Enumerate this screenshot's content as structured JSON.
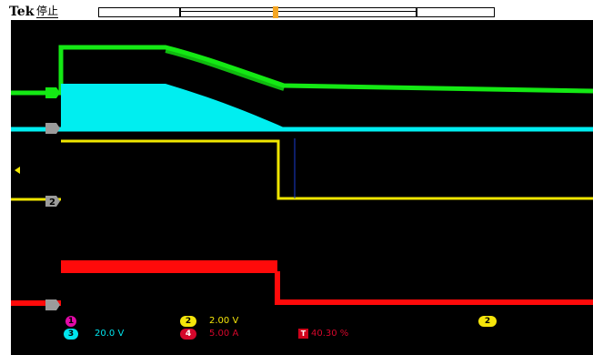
{
  "header": {
    "brand": "Tek",
    "status": "停止"
  },
  "channels": [
    {
      "id": "1",
      "color": "#e30aa8"
    },
    {
      "id": "2",
      "color": "#f5e50a",
      "scale": "2.00 V"
    },
    {
      "id": "3",
      "color": "#00e5ee",
      "scale": "20.0 V"
    },
    {
      "id": "4",
      "color": "#ff1a1a",
      "scale": "5.00 A"
    }
  ],
  "markers": {
    "green": "",
    "yellow": "2",
    "gray1": "",
    "gray2": ""
  },
  "readout": {
    "trigger_label": "T",
    "trigger_value": "40.30 %",
    "badge2": "2"
  },
  "colors": {
    "green": "#14e914",
    "cyan": "#00eef0",
    "yellow": "#f0e600",
    "red": "#ff0a0a"
  }
}
